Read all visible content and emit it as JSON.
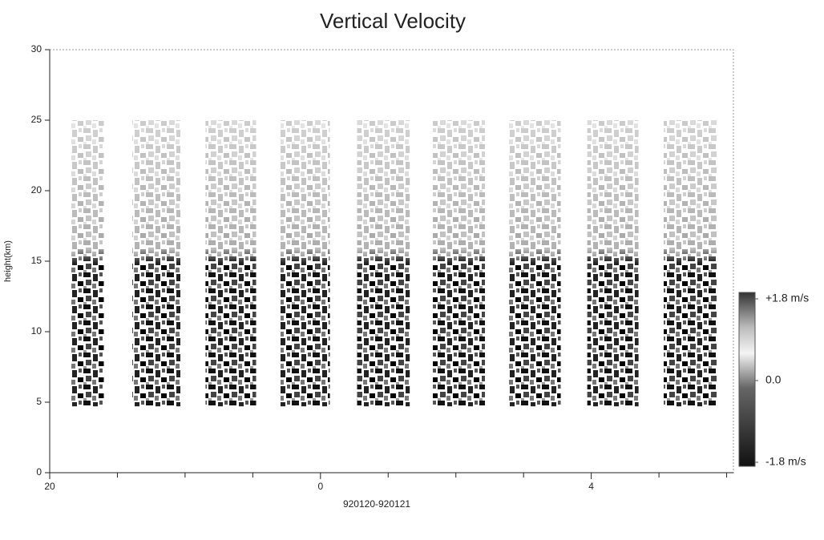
{
  "chart_data": {
    "type": "time-height",
    "title": "Vertical Velocity",
    "xlabel": "920120-920121",
    "ylabel": "height(km)",
    "xlim": [
      20,
      30.1
    ],
    "xticks": [
      {
        "value": 20,
        "label": "20"
      },
      {
        "value": 24,
        "label": "0"
      },
      {
        "value": 28,
        "label": "4"
      }
    ],
    "xminorticks": [
      21,
      22,
      23,
      25,
      26,
      27,
      29,
      30
    ],
    "ylim": [
      0,
      30
    ],
    "yticks": [
      0,
      5,
      10,
      15,
      20,
      25,
      30
    ],
    "periods": [
      {
        "start": 20.31,
        "end": 20.8
      },
      {
        "start": 21.22,
        "end": 21.93
      },
      {
        "start": 22.3,
        "end": 23.05
      },
      {
        "start": 23.41,
        "end": 24.14
      },
      {
        "start": 24.54,
        "end": 25.32
      },
      {
        "start": 25.66,
        "end": 26.43
      },
      {
        "start": 26.78,
        "end": 27.55
      },
      {
        "start": 27.94,
        "end": 28.7
      },
      {
        "start": 29.07,
        "end": 29.86
      }
    ],
    "height_range": [
      4.7,
      25
    ],
    "clim": [
      -1.8,
      1.8
    ],
    "cticks": [
      {
        "value": 1.8,
        "label": "+1.8 m/s"
      },
      {
        "value": 0,
        "label": "0.0"
      },
      {
        "value": -1.8,
        "label": "-1.8 m/s"
      }
    ]
  }
}
